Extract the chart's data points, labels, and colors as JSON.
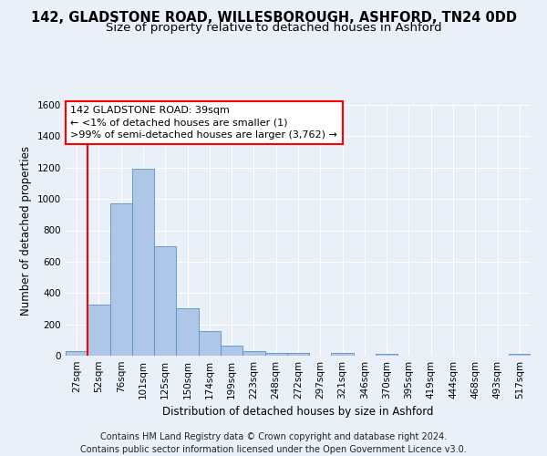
{
  "title_line1": "142, GLADSTONE ROAD, WILLESBOROUGH, ASHFORD, TN24 0DD",
  "title_line2": "Size of property relative to detached houses in Ashford",
  "xlabel": "Distribution of detached houses by size in Ashford",
  "ylabel": "Number of detached properties",
  "footer_line1": "Contains HM Land Registry data © Crown copyright and database right 2024.",
  "footer_line2": "Contains public sector information licensed under the Open Government Licence v3.0.",
  "bar_labels": [
    "27sqm",
    "52sqm",
    "76sqm",
    "101sqm",
    "125sqm",
    "150sqm",
    "174sqm",
    "199sqm",
    "223sqm",
    "248sqm",
    "272sqm",
    "297sqm",
    "321sqm",
    "346sqm",
    "370sqm",
    "395sqm",
    "419sqm",
    "444sqm",
    "468sqm",
    "493sqm",
    "517sqm"
  ],
  "bar_values": [
    30,
    325,
    970,
    1190,
    700,
    300,
    155,
    65,
    30,
    20,
    20,
    0,
    15,
    0,
    10,
    0,
    0,
    0,
    0,
    0,
    10
  ],
  "bar_color": "#aec6e8",
  "bar_edge_color": "#5a8fc2",
  "annotation_line1": "142 GLADSTONE ROAD: 39sqm",
  "annotation_line2": "← <1% of detached houses are smaller (1)",
  "annotation_line3": ">99% of semi-detached houses are larger (3,762) →",
  "red_line_x": 0.5,
  "ylim": [
    0,
    1600
  ],
  "yticks": [
    0,
    200,
    400,
    600,
    800,
    1000,
    1200,
    1400,
    1600
  ],
  "bg_color": "#eaf0f8",
  "plot_bg_color": "#eaf0f8",
  "grid_color": "#ffffff",
  "title_fontsize": 10.5,
  "subtitle_fontsize": 9.5,
  "axis_label_fontsize": 8.5,
  "tick_fontsize": 7.5,
  "footer_fontsize": 7,
  "annotation_fontsize": 8
}
